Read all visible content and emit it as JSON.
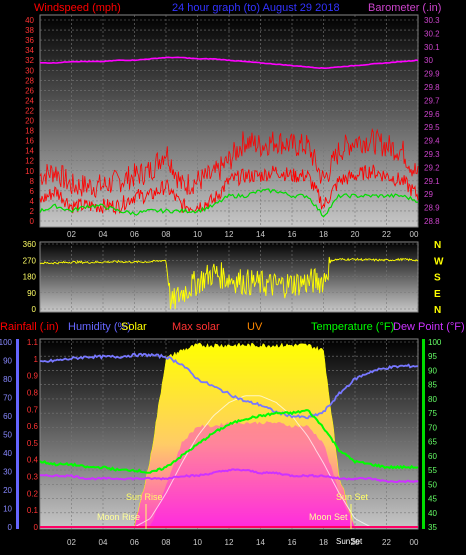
{
  "header": {
    "left": "Windspeed (mph)",
    "center": "24 hour graph (to) August 29 2018",
    "right": "Barometer (.in)"
  },
  "colors": {
    "wind": "#ff0000",
    "gust": "#ff0000",
    "avg_wind": "#00dd00",
    "barometer": "#ff00ff",
    "direction": "#ffff00",
    "rainfall": "#6666ff",
    "humidity": "#7777ff",
    "solar": "#ffff00",
    "max_solar": "#ff3333",
    "uv": "#ff8800",
    "temperature": "#00ff00",
    "dew_point": "#cc33ff",
    "header_blue": "#3333ff",
    "header_magenta": "#cc44cc"
  },
  "wind_panel": {
    "yaxis_left": [
      "0",
      "2",
      "4",
      "6",
      "8",
      "10",
      "12",
      "14",
      "16",
      "18",
      "20",
      "22",
      "24",
      "26",
      "28",
      "30",
      "32",
      "34",
      "36",
      "38",
      "40"
    ],
    "yaxis_right": [
      "28.8",
      "28.9",
      "29",
      "29.1",
      "29.2",
      "29.3",
      "29.4",
      "29.5",
      "29.6",
      "29.7",
      "29.8",
      "29.9",
      "30",
      "30.1",
      "30.2",
      "30.3"
    ],
    "xaxis": [
      "02",
      "04",
      "06",
      "08",
      "10",
      "12",
      "14",
      "16",
      "18",
      "20",
      "22",
      "00"
    ]
  },
  "dir_panel": {
    "yaxis": [
      "0",
      "90",
      "180",
      "270",
      "360"
    ],
    "compass": [
      "N",
      "W",
      "S",
      "E",
      "N"
    ]
  },
  "bottom_header": {
    "rainfall": "Rainfall (.in)",
    "humidity": "Humidity (%)",
    "solar": "Solar",
    "max_solar": "Max solar",
    "uv": "UV",
    "temperature": "Temperature (°F)",
    "dew_point": "Dew Point (°F)"
  },
  "bottom_panel": {
    "yaxis_left_rain": [
      "0",
      "0.1",
      "0.2",
      "0.3",
      "0.4",
      "0.5",
      "0.6",
      "0.7",
      "0.8",
      "0.9",
      "1",
      "1.1"
    ],
    "yaxis_left_hum": [
      "0",
      "10",
      "20",
      "30",
      "40",
      "50",
      "60",
      "70",
      "80",
      "90",
      "100"
    ],
    "yaxis_right": [
      "35",
      "40",
      "45",
      "50",
      "55",
      "60",
      "65",
      "70",
      "75",
      "80",
      "85",
      "90",
      "95",
      "100"
    ],
    "xaxis": [
      "02",
      "04",
      "06",
      "08",
      "10",
      "12",
      "14",
      "16",
      "18",
      "20",
      "22",
      "00"
    ],
    "annotations": {
      "sun_rise": "Sun Rise",
      "sun_set": "Sun Set",
      "moon_rise": "Moon Rise",
      "moon_set": "Moon Set",
      "sun_set_bottom": "SunSet"
    }
  },
  "chart_data": [
    {
      "type": "line",
      "panel": "wind",
      "x_hours": [
        0,
        1,
        2,
        3,
        4,
        5,
        6,
        7,
        8,
        9,
        10,
        11,
        12,
        13,
        14,
        15,
        16,
        17,
        18,
        19,
        20,
        21,
        22,
        23,
        24
      ],
      "ylim": [
        0,
        40
      ],
      "y2lim": [
        28.8,
        30.3
      ],
      "series": [
        {
          "name": "Windspeed",
          "axis": "left",
          "values": [
            4,
            6,
            3,
            3,
            3,
            3,
            5,
            5,
            7,
            3,
            3,
            4,
            8,
            9,
            9,
            10,
            9,
            9,
            3,
            8,
            9,
            10,
            9,
            8,
            5
          ]
        },
        {
          "name": "Gust",
          "axis": "left",
          "values": [
            9,
            10,
            7,
            7,
            7,
            8,
            9,
            10,
            14,
            7,
            8,
            9,
            12,
            16,
            15,
            16,
            15,
            15,
            8,
            14,
            16,
            16,
            15,
            14,
            9
          ]
        },
        {
          "name": "Average wind",
          "axis": "left",
          "values": [
            2,
            3,
            2,
            3,
            3,
            2,
            1.5,
            2,
            2,
            2,
            2,
            3,
            5,
            5,
            6,
            6,
            5,
            5,
            1,
            5,
            5,
            5,
            5,
            5,
            4
          ]
        },
        {
          "name": "Barometer",
          "axis": "right",
          "values": [
            29.98,
            29.98,
            29.99,
            29.99,
            29.99,
            30.0,
            30.0,
            30.01,
            30.02,
            30.02,
            30.01,
            30.01,
            30.0,
            29.99,
            29.98,
            29.97,
            29.96,
            29.95,
            29.94,
            29.95,
            29.96,
            29.97,
            29.98,
            29.99,
            30.0
          ]
        }
      ]
    },
    {
      "type": "line",
      "panel": "direction",
      "x_hours": [
        0,
        1,
        2,
        3,
        4,
        5,
        6,
        7,
        8,
        8.3,
        9,
        10,
        11,
        12,
        13,
        14,
        15,
        16,
        17,
        18,
        18.5,
        19,
        20,
        21,
        22,
        23,
        24
      ],
      "ylim": [
        0,
        360
      ],
      "series": [
        {
          "name": "Wind direction",
          "values": [
            255,
            255,
            260,
            258,
            260,
            262,
            260,
            262,
            270,
            20,
            90,
            150,
            200,
            170,
            150,
            140,
            130,
            140,
            150,
            160,
            270,
            275,
            275,
            272,
            270,
            275,
            270
          ]
        }
      ]
    },
    {
      "type": "area",
      "panel": "bottom",
      "x_hours": [
        0,
        1,
        2,
        3,
        4,
        5,
        6,
        7,
        8,
        9,
        10,
        11,
        12,
        13,
        14,
        15,
        16,
        17,
        18,
        19,
        20,
        21,
        22,
        23,
        24
      ],
      "ylim_rain": [
        0,
        1.1
      ],
      "ylim_humidity": [
        0,
        100
      ],
      "ylim_temperature": [
        35,
        100
      ],
      "series": [
        {
          "name": "Humidity",
          "axis": "humidity",
          "values": [
            89,
            90,
            91,
            92,
            92,
            92,
            93,
            93,
            92,
            88,
            80,
            76,
            72,
            68,
            66,
            62,
            60,
            59,
            62,
            72,
            80,
            84,
            86,
            87,
            87
          ]
        },
        {
          "name": "Solar",
          "axis": "rain",
          "values": [
            0,
            0,
            0,
            0,
            0,
            0,
            0,
            0.4,
            1.0,
            1.05,
            1.08,
            1.08,
            1.08,
            1.08,
            1.08,
            1.08,
            1.08,
            1.08,
            1.05,
            0.3,
            0,
            0,
            0,
            0,
            0
          ]
        },
        {
          "name": "Max solar",
          "axis": "rain",
          "values": [
            0,
            0,
            0,
            0,
            0,
            0,
            0,
            0.05,
            0.2,
            0.38,
            0.54,
            0.66,
            0.74,
            0.78,
            0.78,
            0.74,
            0.66,
            0.54,
            0.38,
            0.2,
            0.05,
            0,
            0,
            0,
            0
          ]
        },
        {
          "name": "UV",
          "axis": "rain",
          "values": [
            0,
            0,
            0,
            0,
            0,
            0,
            0,
            0,
            0.25,
            0.5,
            0.6,
            0.6,
            0.62,
            0.62,
            0.62,
            0.62,
            0.6,
            0.6,
            0.5,
            0.2,
            0,
            0,
            0,
            0,
            0
          ]
        },
        {
          "name": "Temperature",
          "axis": "temperature",
          "values": [
            58,
            57,
            57,
            56,
            56,
            55,
            55,
            54,
            56,
            60,
            64,
            68,
            71,
            73,
            74,
            75,
            75,
            76,
            70,
            62,
            58,
            57,
            56,
            56,
            56
          ]
        },
        {
          "name": "Dew Point",
          "axis": "temperature",
          "values": [
            53,
            53,
            53,
            52,
            52,
            52,
            52,
            52,
            52,
            53,
            53,
            54,
            55,
            55,
            54,
            54,
            53,
            53,
            53,
            52,
            52,
            52,
            51,
            51,
            51
          ]
        },
        {
          "name": "Rainfall",
          "axis": "rain",
          "values": [
            0,
            0,
            0,
            0,
            0,
            0,
            0,
            0,
            0,
            0,
            0,
            0,
            0,
            0,
            0,
            0,
            0,
            0,
            0,
            0,
            0,
            0,
            0,
            0,
            0
          ]
        }
      ]
    }
  ]
}
